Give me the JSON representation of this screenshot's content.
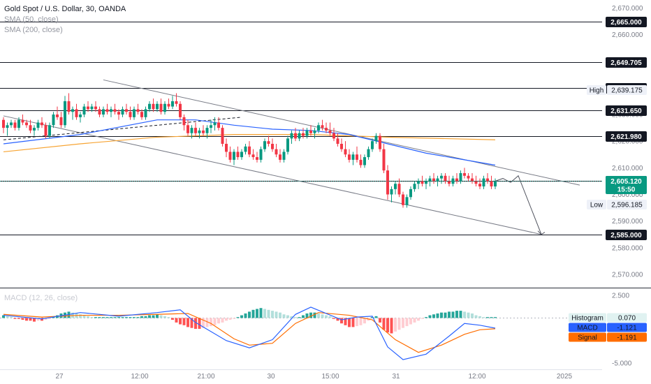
{
  "header": {
    "title": "Gold Spot / U.S. Dollar, 30, OANDA",
    "sma50": "SMA (50, close)",
    "sma200": "SMA (200, close)",
    "macd_title": "MACD (12, 26, close)"
  },
  "colors": {
    "up": "#089981",
    "down": "#f23645",
    "sma50": "#2962ff",
    "sma200": "#f7a433",
    "macd": "#2962ff",
    "signal": "#ff6d00",
    "histUpStrong": "#26a69a",
    "histUpWeak": "#b2dfdb",
    "histDownStrong": "#ff5252",
    "histDownWeak": "#ffcdd2",
    "price": "#089981"
  },
  "price_axis": {
    "ticks": [
      "2,670.000",
      "2,660.000",
      "2,650.000",
      "2,640.000",
      "2,630.000",
      "2,620.000",
      "2,610.000",
      "2,600.000",
      "2,590.000",
      "2,580.000",
      "2,570.000"
    ]
  },
  "levels": [
    "2,665.000",
    "2,649.705",
    "2,640.000",
    "2,631.650",
    "2,621.980",
    "2,605.000",
    "2,585.000"
  ],
  "high": {
    "label": "High",
    "value": "2,639.175"
  },
  "low": {
    "label": "Low",
    "value": "2,596.185"
  },
  "current": {
    "value": "2,605.120",
    "countdown": "15:50"
  },
  "macd_axis": {
    "top": "2.500",
    "bottom": "-5.000"
  },
  "macd_labels": [
    {
      "name": "Histogram",
      "value": "0.070"
    },
    {
      "name": "MACD",
      "value": "-1.121"
    },
    {
      "name": "Signal",
      "value": "-1.191"
    }
  ],
  "time_axis": [
    "27",
    "12:00",
    "21:00",
    "30",
    "15:00",
    "31",
    "12:00",
    "2025"
  ],
  "chart_data": {
    "type": "candlestick",
    "title": "Gold Spot / U.S. Dollar, 30, OANDA",
    "ylim": [
      2565,
      2673
    ],
    "y_ticks": [
      2670,
      2660,
      2650,
      2640,
      2630,
      2620,
      2610,
      2600,
      2590,
      2580,
      2570
    ],
    "time_ticks": [
      "27",
      "12:00",
      "21:00",
      "30",
      "15:00",
      "31",
      "12:00",
      "2025"
    ],
    "candles": [
      [
        2628,
        2629,
        2623,
        2625
      ],
      [
        2625,
        2627,
        2622,
        2626
      ],
      [
        2626,
        2628,
        2625,
        2627
      ],
      [
        2627,
        2628,
        2624,
        2625
      ],
      [
        2625,
        2629,
        2624,
        2628
      ],
      [
        2628,
        2630,
        2626,
        2627
      ],
      [
        2627,
        2628,
        2625,
        2626
      ],
      [
        2626,
        2628,
        2623,
        2624
      ],
      [
        2624,
        2626,
        2622,
        2625
      ],
      [
        2625,
        2628,
        2624,
        2627
      ],
      [
        2627,
        2629,
        2625,
        2626
      ],
      [
        2626,
        2627,
        2621,
        2622
      ],
      [
        2622,
        2627,
        2621,
        2626
      ],
      [
        2626,
        2631,
        2625,
        2630
      ],
      [
        2630,
        2633,
        2628,
        2629
      ],
      [
        2629,
        2631,
        2625,
        2626
      ],
      [
        2626,
        2637,
        2625,
        2635
      ],
      [
        2635,
        2638,
        2630,
        2631
      ],
      [
        2631,
        2633,
        2628,
        2632
      ],
      [
        2632,
        2634,
        2628,
        2629
      ],
      [
        2629,
        2631,
        2627,
        2630
      ],
      [
        2630,
        2634,
        2629,
        2633
      ],
      [
        2633,
        2635,
        2631,
        2632
      ],
      [
        2632,
        2634,
        2631,
        2633
      ],
      [
        2633,
        2635,
        2631,
        2632
      ],
      [
        2632,
        2633,
        2629,
        2630
      ],
      [
        2630,
        2633,
        2629,
        2632
      ],
      [
        2632,
        2634,
        2630,
        2631
      ],
      [
        2631,
        2633,
        2629,
        2632
      ],
      [
        2632,
        2634,
        2630,
        2631
      ],
      [
        2631,
        2632,
        2628,
        2630
      ],
      [
        2630,
        2633,
        2629,
        2632
      ],
      [
        2632,
        2634,
        2630,
        2631
      ],
      [
        2631,
        2633,
        2628,
        2629
      ],
      [
        2629,
        2633,
        2628,
        2632
      ],
      [
        2632,
        2634,
        2630,
        2631
      ],
      [
        2631,
        2632,
        2628,
        2629
      ],
      [
        2629,
        2633,
        2628,
        2632
      ],
      [
        2632,
        2635,
        2631,
        2634
      ],
      [
        2634,
        2636,
        2631,
        2632
      ],
      [
        2632,
        2635,
        2631,
        2634
      ],
      [
        2634,
        2636,
        2630,
        2631
      ],
      [
        2631,
        2635,
        2630,
        2634
      ],
      [
        2634,
        2636,
        2632,
        2633
      ],
      [
        2633,
        2637,
        2632,
        2635
      ],
      [
        2635,
        2638,
        2633,
        2634
      ],
      [
        2634,
        2635,
        2628,
        2629
      ],
      [
        2629,
        2630,
        2624,
        2626
      ],
      [
        2626,
        2628,
        2622,
        2623
      ],
      [
        2623,
        2626,
        2621,
        2625
      ],
      [
        2625,
        2627,
        2622,
        2623
      ],
      [
        2623,
        2625,
        2621,
        2624
      ],
      [
        2624,
        2626,
        2622,
        2623
      ],
      [
        2623,
        2626,
        2621,
        2625
      ],
      [
        2625,
        2628,
        2623,
        2626
      ],
      [
        2626,
        2629,
        2624,
        2627
      ],
      [
        2627,
        2629,
        2624,
        2625
      ],
      [
        2625,
        2626,
        2618,
        2619
      ],
      [
        2619,
        2621,
        2614,
        2616
      ],
      [
        2616,
        2618,
        2612,
        2613
      ],
      [
        2613,
        2617,
        2611,
        2616
      ],
      [
        2616,
        2618,
        2613,
        2614
      ],
      [
        2614,
        2617,
        2613,
        2616
      ],
      [
        2616,
        2619,
        2615,
        2618
      ],
      [
        2618,
        2620,
        2614,
        2615
      ],
      [
        2615,
        2617,
        2613,
        2614
      ],
      [
        2614,
        2616,
        2612,
        2613
      ],
      [
        2613,
        2618,
        2612,
        2617
      ],
      [
        2617,
        2621,
        2616,
        2620
      ],
      [
        2620,
        2622,
        2618,
        2619
      ],
      [
        2619,
        2621,
        2616,
        2617
      ],
      [
        2617,
        2619,
        2614,
        2615
      ],
      [
        2615,
        2617,
        2612,
        2613
      ],
      [
        2613,
        2617,
        2612,
        2616
      ],
      [
        2616,
        2622,
        2615,
        2621
      ],
      [
        2621,
        2624,
        2619,
        2623
      ],
      [
        2623,
        2625,
        2620,
        2621
      ],
      [
        2621,
        2624,
        2620,
        2623
      ],
      [
        2623,
        2625,
        2621,
        2622
      ],
      [
        2622,
        2625,
        2621,
        2624
      ],
      [
        2624,
        2626,
        2622,
        2623
      ],
      [
        2623,
        2625,
        2621,
        2624
      ],
      [
        2624,
        2627,
        2623,
        2626
      ],
      [
        2626,
        2628,
        2624,
        2625
      ],
      [
        2625,
        2627,
        2623,
        2624
      ],
      [
        2624,
        2627,
        2622,
        2623
      ],
      [
        2623,
        2625,
        2620,
        2621
      ],
      [
        2621,
        2623,
        2618,
        2619
      ],
      [
        2619,
        2621,
        2616,
        2617
      ],
      [
        2617,
        2620,
        2614,
        2615
      ],
      [
        2615,
        2617,
        2612,
        2613
      ],
      [
        2613,
        2616,
        2611,
        2615
      ],
      [
        2615,
        2618,
        2612,
        2613
      ],
      [
        2613,
        2615,
        2610,
        2611
      ],
      [
        2611,
        2615,
        2610,
        2614
      ],
      [
        2614,
        2618,
        2613,
        2617
      ],
      [
        2617,
        2621,
        2616,
        2620
      ],
      [
        2620,
        2623,
        2619,
        2622
      ],
      [
        2622,
        2623,
        2616,
        2617
      ],
      [
        2617,
        2619,
        2608,
        2609
      ],
      [
        2609,
        2611,
        2598,
        2600
      ],
      [
        2600,
        2603,
        2597,
        2602
      ],
      [
        2602,
        2605,
        2600,
        2604
      ],
      [
        2604,
        2606,
        2599,
        2600
      ],
      [
        2600,
        2601,
        2595,
        2596
      ],
      [
        2596,
        2600,
        2595,
        2599
      ],
      [
        2599,
        2603,
        2598,
        2602
      ],
      [
        2602,
        2605,
        2601,
        2604
      ],
      [
        2604,
        2606,
        2602,
        2605
      ],
      [
        2605,
        2607,
        2603,
        2604
      ],
      [
        2604,
        2606,
        2602,
        2605
      ],
      [
        2605,
        2607,
        2603,
        2606
      ],
      [
        2606,
        2608,
        2604,
        2605
      ],
      [
        2605,
        2607,
        2603,
        2606
      ],
      [
        2606,
        2608,
        2604,
        2607
      ],
      [
        2607,
        2608,
        2604,
        2605
      ],
      [
        2605,
        2607,
        2603,
        2604
      ],
      [
        2604,
        2607,
        2603,
        2606
      ],
      [
        2606,
        2608,
        2604,
        2605
      ],
      [
        2605,
        2609,
        2604,
        2608
      ],
      [
        2608,
        2610,
        2606,
        2607
      ],
      [
        2607,
        2608,
        2605,
        2606
      ],
      [
        2606,
        2608,
        2604,
        2605
      ],
      [
        2605,
        2607,
        2603,
        2604
      ],
      [
        2604,
        2606,
        2602,
        2603
      ],
      [
        2603,
        2607,
        2602,
        2606
      ],
      [
        2606,
        2608,
        2604,
        2605
      ],
      [
        2605,
        2607,
        2602,
        2603
      ],
      [
        2603,
        2606,
        2602,
        2605
      ]
    ],
    "sma50": [
      [
        0,
        2619
      ],
      [
        20,
        2622.5
      ],
      [
        40,
        2628
      ],
      [
        50,
        2628
      ],
      [
        60,
        2626
      ],
      [
        70,
        2624.5
      ],
      [
        80,
        2624
      ],
      [
        90,
        2622.5
      ],
      [
        100,
        2619
      ],
      [
        110,
        2615.5
      ],
      [
        118,
        2613.5
      ],
      [
        128,
        2611
      ]
    ],
    "sma200": [
      [
        0,
        2616
      ],
      [
        20,
        2619
      ],
      [
        40,
        2621.5
      ],
      [
        60,
        2622.5
      ],
      [
        80,
        2622.5
      ],
      [
        100,
        2621.5
      ],
      [
        128,
        2620.5
      ]
    ],
    "dashed_trend": [
      [
        0,
        2620.5
      ],
      [
        62,
        2629
      ]
    ],
    "channel_upper": [
      [
        26,
        2643
      ],
      [
        150,
        2603.5
      ]
    ],
    "channel_lower": [
      [
        0,
        2629.5
      ],
      [
        140,
        2585
      ]
    ],
    "projection_path": [
      [
        128,
        2605
      ],
      [
        130,
        2606
      ],
      [
        132,
        2604.5
      ],
      [
        134,
        2607
      ],
      [
        140,
        2585
      ]
    ],
    "macd": {
      "ylim": [
        -5.6,
        3.2
      ],
      "histogram": [
        0.3,
        0.2,
        0.1,
        -0.1,
        -0.1,
        -0.2,
        -0.3,
        -0.3,
        -0.4,
        -0.3,
        -0.3,
        -0.2,
        -0.1,
        0.1,
        0.3,
        0.5,
        0.6,
        0.7,
        0.6,
        0.5,
        0.4,
        0.3,
        0.2,
        0.1,
        0.1,
        0.1,
        0.1,
        0.1,
        0.1,
        0.1,
        0.1,
        0.1,
        0.1,
        0.1,
        0.1,
        0.1,
        0.2,
        0.2,
        0.3,
        0.3,
        0.4,
        0.3,
        0.2,
        0.1,
        -0.2,
        -0.5,
        -0.7,
        -0.8,
        -1.0,
        -1.1,
        -1.2,
        -1.2,
        -1.1,
        -1.0,
        -0.9,
        -0.8,
        -0.6,
        -0.5,
        -0.3,
        -0.2,
        -0.1,
        0.1,
        0.3,
        0.5,
        0.7,
        0.9,
        1.0,
        1.1,
        1.0,
        0.9,
        0.8,
        0.7,
        0.6,
        0.4,
        0.3,
        0.2,
        0.1,
        0.1,
        0.3,
        0.5,
        0.6,
        0.6,
        0.5,
        0.4,
        0.3,
        0.2,
        -0.1,
        -0.3,
        -0.6,
        -0.8,
        -1.0,
        -1.0,
        -0.9,
        -0.8,
        -0.6,
        -0.3,
        0.1,
        0.2,
        -0.5,
        -1.3,
        -1.6,
        -1.7,
        -1.5,
        -1.3,
        -1.1,
        -0.9,
        -0.7,
        -0.5,
        -0.3,
        -0.1,
        0.1,
        0.3,
        0.4,
        0.5,
        0.6,
        0.6,
        0.7,
        0.7,
        0.8,
        0.8,
        0.7,
        0.6,
        0.5,
        0.3,
        0.2,
        0.1,
        0.1,
        0.1,
        0.1
      ],
      "macd_line": [
        [
          0,
          0.3
        ],
        [
          10,
          -0.1
        ],
        [
          20,
          0.6
        ],
        [
          30,
          0.2
        ],
        [
          40,
          0.6
        ],
        [
          46,
          0.9
        ],
        [
          50,
          -0.5
        ],
        [
          58,
          -2.5
        ],
        [
          64,
          -3.3
        ],
        [
          70,
          -2.4
        ],
        [
          76,
          0.4
        ],
        [
          80,
          1.2
        ],
        [
          88,
          -0.2
        ],
        [
          92,
          0.1
        ],
        [
          96,
          0.2
        ],
        [
          100,
          -3.2
        ],
        [
          104,
          -4.6
        ],
        [
          110,
          -4.0
        ],
        [
          116,
          -2.0
        ],
        [
          120,
          -0.6
        ],
        [
          124,
          -0.8
        ],
        [
          128,
          -1.121
        ]
      ],
      "signal_line": [
        [
          0,
          0.4
        ],
        [
          10,
          0.1
        ],
        [
          20,
          0.3
        ],
        [
          30,
          0.3
        ],
        [
          40,
          0.4
        ],
        [
          48,
          0.5
        ],
        [
          54,
          -0.6
        ],
        [
          60,
          -2.3
        ],
        [
          64,
          -3.0
        ],
        [
          70,
          -2.8
        ],
        [
          76,
          -0.6
        ],
        [
          82,
          0.6
        ],
        [
          90,
          0.3
        ],
        [
          96,
          -0.2
        ],
        [
          102,
          -2.4
        ],
        [
          108,
          -3.8
        ],
        [
          114,
          -3.0
        ],
        [
          120,
          -1.8
        ],
        [
          124,
          -1.3
        ],
        [
          128,
          -1.191
        ]
      ]
    }
  }
}
